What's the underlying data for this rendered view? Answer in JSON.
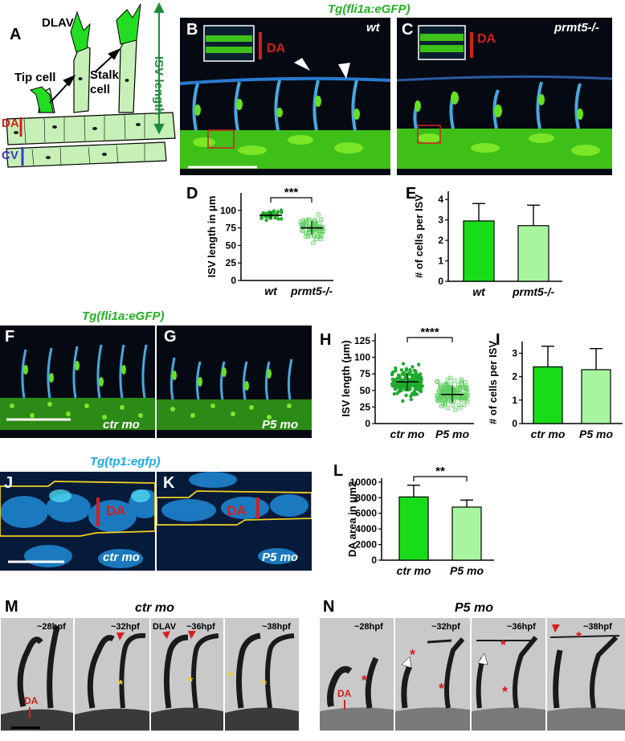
{
  "panels": {
    "A": "A",
    "B": "B",
    "C": "C",
    "D": "D",
    "E": "E",
    "F": "F",
    "G": "G",
    "H": "H",
    "I": "I",
    "J": "J",
    "K": "K",
    "L": "L",
    "M": "M",
    "N": "N"
  },
  "schematic": {
    "dlav": "DLAV",
    "isv_length": "ISV length",
    "tip_cell": "Tip cell",
    "stalk_cell": "Stalk cell",
    "da": "DA",
    "cv": "CV"
  },
  "titles": {
    "fli1a_top": "Tg(fli1a:eGFP)",
    "fli1a_mid": "Tg(fli1a:eGFP)",
    "tp1": "Tg(tp1:egfp)",
    "ctr_mo": "ctr mo",
    "p5_mo": "P5 mo"
  },
  "genotypes": {
    "wt": "wt",
    "prmt5": "prmt5-/-",
    "ctr_mo": "ctr mo",
    "p5_mo": "P5 mo",
    "da": "DA"
  },
  "timepoints": {
    "t28": "~28hpf",
    "t32": "~32hpf",
    "t36": "~36hpf",
    "t38": "~38hpf",
    "dlav": "DLAV",
    "da": "DA"
  },
  "chart_data": [
    {
      "id": "D",
      "type": "scatter",
      "ylabel": "ISV length in μm",
      "categories": [
        "wt",
        "prmt5-/-"
      ],
      "ylim": [
        0,
        125
      ],
      "yticks": [
        0,
        25,
        50,
        75,
        100
      ],
      "means": [
        93,
        75
      ],
      "significance": "***"
    },
    {
      "id": "E",
      "type": "bar",
      "ylabel": "# of cells per ISV",
      "categories": [
        "wt",
        "prmt5-/-"
      ],
      "values": [
        2.95,
        2.72
      ],
      "errors": [
        0.85,
        1.0
      ],
      "ylim": [
        0,
        4.4
      ],
      "yticks": [
        0,
        1,
        2,
        3,
        4
      ]
    },
    {
      "id": "H",
      "type": "scatter",
      "ylabel": "ISV length (μm)",
      "categories": [
        "ctr mo",
        "P5 mo"
      ],
      "ylim": [
        0,
        136
      ],
      "yticks": [
        0,
        25,
        50,
        75,
        100,
        125
      ],
      "yticklabels": [
        "0",
        "25",
        "50",
        "75",
        "100",
        "125"
      ],
      "means": [
        63,
        44
      ],
      "significance": "****"
    },
    {
      "id": "I",
      "type": "bar",
      "ylabel": "# of cells per ISV",
      "categories": [
        "ctr mo",
        "P5 mo"
      ],
      "values": [
        2.42,
        2.3
      ],
      "errors": [
        0.88,
        0.9
      ],
      "ylim": [
        0,
        3.5
      ],
      "yticks": [
        0,
        1,
        2,
        3
      ]
    },
    {
      "id": "L",
      "type": "bar",
      "ylabel": "DA area in μm2",
      "categories": [
        "ctr mo",
        "P5 mo"
      ],
      "values": [
        8100,
        6800
      ],
      "errors": [
        1500,
        900
      ],
      "ylim": [
        0,
        10500
      ],
      "yticks": [
        0,
        2000,
        4000,
        6000,
        8000,
        10000
      ],
      "significance": "**"
    }
  ]
}
